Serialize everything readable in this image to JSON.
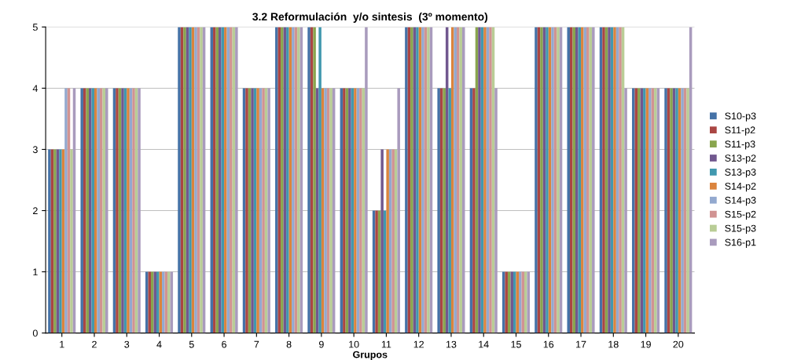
{
  "chart_data": {
    "type": "bar",
    "title": "3.2 Reformulación  y/o sintesis  (3º momento)",
    "xlabel": "Grupos",
    "categories": [
      "1",
      "2",
      "3",
      "4",
      "5",
      "6",
      "7",
      "8",
      "9",
      "10",
      "11",
      "12",
      "13",
      "14",
      "15",
      "16",
      "17",
      "18",
      "19",
      "20"
    ],
    "series": [
      {
        "name": "S10-p3",
        "color": "#4572a7",
        "values": [
          3,
          4,
          4,
          1,
          5,
          5,
          4,
          5,
          5,
          4,
          2,
          5,
          4,
          4,
          1,
          5,
          5,
          5,
          4,
          4
        ]
      },
      {
        "name": "S11-p2",
        "color": "#aa4643",
        "values": [
          3,
          4,
          4,
          1,
          5,
          5,
          4,
          5,
          5,
          4,
          2,
          5,
          4,
          4,
          1,
          5,
          5,
          5,
          4,
          4
        ]
      },
      {
        "name": "S11-p3",
        "color": "#89a54e",
        "values": [
          3,
          4,
          4,
          1,
          5,
          5,
          4,
          5,
          5,
          4,
          2,
          5,
          4,
          5,
          1,
          5,
          5,
          5,
          4,
          4
        ]
      },
      {
        "name": "S13-p2",
        "color": "#71588f",
        "values": [
          3,
          4,
          4,
          1,
          5,
          5,
          4,
          5,
          4,
          4,
          3,
          5,
          5,
          5,
          1,
          5,
          5,
          5,
          4,
          4
        ]
      },
      {
        "name": "S13-p3",
        "color": "#4198af",
        "values": [
          3,
          4,
          4,
          1,
          5,
          5,
          4,
          5,
          5,
          4,
          2,
          5,
          4,
          5,
          1,
          5,
          5,
          5,
          4,
          4
        ]
      },
      {
        "name": "S14-p2",
        "color": "#db843d",
        "values": [
          3,
          4,
          4,
          1,
          5,
          5,
          4,
          5,
          4,
          4,
          3,
          5,
          5,
          5,
          1,
          5,
          5,
          5,
          4,
          4
        ]
      },
      {
        "name": "S14-p3",
        "color": "#93a9cf",
        "values": [
          4,
          4,
          4,
          1,
          5,
          5,
          4,
          5,
          4,
          4,
          3,
          5,
          5,
          5,
          1,
          5,
          5,
          5,
          4,
          4
        ]
      },
      {
        "name": "S15-p2",
        "color": "#d19392",
        "values": [
          4,
          4,
          4,
          1,
          5,
          5,
          4,
          5,
          4,
          4,
          3,
          5,
          5,
          5,
          1,
          5,
          5,
          5,
          4,
          4
        ]
      },
      {
        "name": "S15-p3",
        "color": "#b9cd96",
        "values": [
          3,
          4,
          4,
          1,
          5,
          5,
          4,
          5,
          4,
          4,
          3,
          5,
          5,
          5,
          1,
          5,
          5,
          5,
          4,
          4
        ]
      },
      {
        "name": "S16-p1",
        "color": "#a99bbd",
        "values": [
          4,
          4,
          4,
          1,
          5,
          5,
          4,
          5,
          4,
          5,
          4,
          5,
          5,
          4,
          1,
          5,
          5,
          4,
          4,
          5
        ]
      }
    ],
    "ylim": [
      0,
      5
    ],
    "yticks": [
      0,
      1,
      2,
      3,
      4,
      5
    ],
    "grid": "y",
    "legend": "right"
  }
}
